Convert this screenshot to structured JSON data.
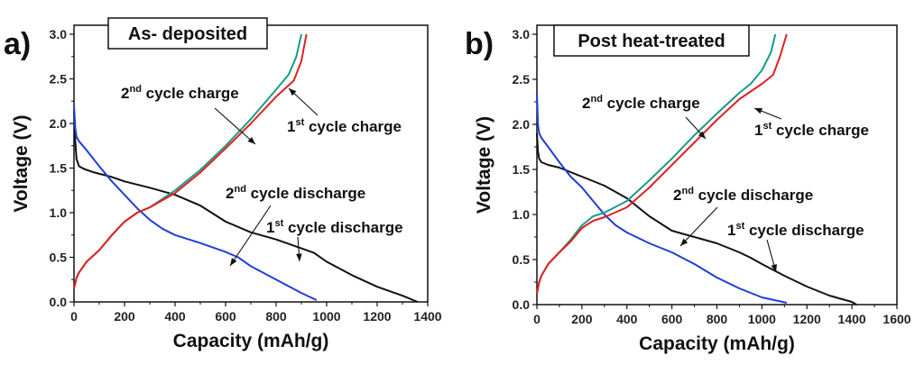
{
  "chart_data": [
    {
      "type": "line",
      "panel_label": "a)",
      "title": "As- deposited",
      "xlabel": "Capacity (mAh/g)",
      "ylabel": "Voltage (V)",
      "xlim": [
        0,
        1400
      ],
      "ylim": [
        0,
        3.0
      ],
      "xticks": [
        "0",
        "200",
        "400",
        "600",
        "800",
        "1000",
        "1200",
        "1400"
      ],
      "yticks": [
        "0.0",
        "0.5",
        "1.0",
        "1.5",
        "2.0",
        "2.5",
        "3.0"
      ],
      "series": [
        {
          "name": "1st cycle discharge",
          "color": "#111111",
          "x": [
            0,
            5,
            10,
            20,
            40,
            80,
            150,
            200,
            300,
            400,
            500,
            600,
            700,
            800,
            900,
            950,
            1000,
            1100,
            1200,
            1300,
            1360
          ],
          "y": [
            2.15,
            1.8,
            1.6,
            1.52,
            1.49,
            1.45,
            1.4,
            1.35,
            1.28,
            1.2,
            1.08,
            0.9,
            0.78,
            0.7,
            0.6,
            0.55,
            0.45,
            0.3,
            0.17,
            0.07,
            0.0
          ]
        },
        {
          "name": "2nd cycle discharge",
          "color": "#1f3fd6",
          "x": [
            0,
            5,
            10,
            20,
            50,
            100,
            150,
            200,
            250,
            300,
            350,
            400,
            500,
            600,
            650,
            700,
            800,
            900,
            960
          ],
          "y": [
            2.2,
            1.95,
            1.85,
            1.8,
            1.7,
            1.52,
            1.35,
            1.2,
            1.05,
            0.92,
            0.82,
            0.75,
            0.66,
            0.56,
            0.5,
            0.4,
            0.25,
            0.1,
            0.02
          ]
        },
        {
          "name": "2nd cycle charge",
          "color": "#1a9a8a",
          "x": [
            0,
            10,
            20,
            50,
            100,
            150,
            200,
            250,
            300,
            400,
            500,
            600,
            700,
            800,
            850,
            880,
            900
          ],
          "y": [
            0.15,
            0.27,
            0.33,
            0.45,
            0.58,
            0.75,
            0.9,
            1.0,
            1.06,
            1.25,
            1.48,
            1.75,
            2.05,
            2.38,
            2.55,
            2.75,
            3.0
          ]
        },
        {
          "name": "1st cycle charge",
          "color": "#e02020",
          "x": [
            0,
            10,
            20,
            50,
            100,
            150,
            200,
            250,
            300,
            400,
            500,
            600,
            700,
            800,
            870,
            900,
            920
          ],
          "y": [
            0.15,
            0.27,
            0.33,
            0.45,
            0.58,
            0.75,
            0.9,
            1.0,
            1.06,
            1.22,
            1.45,
            1.72,
            2.0,
            2.3,
            2.48,
            2.7,
            3.0
          ]
        }
      ],
      "annotations": [
        {
          "base": "2",
          "sup": "nd",
          "text": " cycle charge",
          "series": "2nd cycle charge"
        },
        {
          "base": "1",
          "sup": "st",
          "text": " cycle charge",
          "series": "1st cycle charge"
        },
        {
          "base": "2",
          "sup": "nd",
          "text": " cycle discharge",
          "series": "2nd cycle discharge"
        },
        {
          "base": "1",
          "sup": "st",
          "text": " cycle discharge",
          "series": "1st cycle discharge"
        }
      ]
    },
    {
      "type": "line",
      "panel_label": "b)",
      "title": "Post heat-treated",
      "xlabel": "Capacity (mAh/g)",
      "ylabel": "Voltage (V)",
      "xlim": [
        0,
        1600
      ],
      "ylim": [
        0,
        3.0
      ],
      "xticks": [
        "0",
        "200",
        "400",
        "600",
        "800",
        "1000",
        "1200",
        "1400",
        "1600"
      ],
      "yticks": [
        "0.0",
        "0.5",
        "1.0",
        "1.5",
        "2.0",
        "2.5",
        "3.0"
      ],
      "series": [
        {
          "name": "1st cycle discharge",
          "color": "#111111",
          "x": [
            0,
            5,
            10,
            20,
            50,
            100,
            200,
            300,
            400,
            500,
            600,
            700,
            800,
            900,
            950,
            1000,
            1100,
            1200,
            1300,
            1400,
            1420
          ],
          "y": [
            1.9,
            1.7,
            1.62,
            1.58,
            1.55,
            1.52,
            1.42,
            1.32,
            1.18,
            0.98,
            0.82,
            0.75,
            0.68,
            0.58,
            0.52,
            0.45,
            0.32,
            0.2,
            0.1,
            0.03,
            0.0
          ]
        },
        {
          "name": "2nd cycle discharge",
          "color": "#1f3fd6",
          "x": [
            0,
            5,
            10,
            20,
            50,
            100,
            150,
            200,
            250,
            300,
            350,
            400,
            500,
            600,
            700,
            800,
            900,
            1000,
            1110
          ],
          "y": [
            2.35,
            2.0,
            1.9,
            1.85,
            1.75,
            1.58,
            1.42,
            1.3,
            1.15,
            1.0,
            0.88,
            0.8,
            0.68,
            0.58,
            0.45,
            0.3,
            0.18,
            0.08,
            0.02
          ]
        },
        {
          "name": "2nd cycle charge",
          "color": "#1a9a8a",
          "x": [
            0,
            10,
            20,
            50,
            100,
            150,
            200,
            250,
            300,
            400,
            500,
            600,
            700,
            800,
            900,
            950,
            1000,
            1040,
            1060
          ],
          "y": [
            0.12,
            0.25,
            0.32,
            0.45,
            0.58,
            0.72,
            0.88,
            0.98,
            1.02,
            1.15,
            1.38,
            1.62,
            1.88,
            2.12,
            2.35,
            2.45,
            2.6,
            2.8,
            3.0
          ]
        },
        {
          "name": "1st cycle charge",
          "color": "#e02020",
          "x": [
            0,
            10,
            20,
            50,
            100,
            150,
            200,
            250,
            300,
            400,
            500,
            600,
            700,
            800,
            900,
            1000,
            1050,
            1080,
            1110
          ],
          "y": [
            0.12,
            0.25,
            0.32,
            0.45,
            0.58,
            0.7,
            0.85,
            0.93,
            0.97,
            1.08,
            1.3,
            1.55,
            1.8,
            2.05,
            2.28,
            2.45,
            2.55,
            2.75,
            3.0
          ]
        }
      ],
      "annotations": [
        {
          "base": "2",
          "sup": "nd",
          "text": " cycle charge",
          "series": "2nd cycle charge"
        },
        {
          "base": "1",
          "sup": "st",
          "text": " cycle charge",
          "series": "1st cycle charge"
        },
        {
          "base": "2",
          "sup": "nd",
          "text": " cycle discharge",
          "series": "2nd cycle discharge"
        },
        {
          "base": "1",
          "sup": "st",
          "text": " cycle discharge",
          "series": "1st cycle discharge"
        }
      ]
    }
  ]
}
